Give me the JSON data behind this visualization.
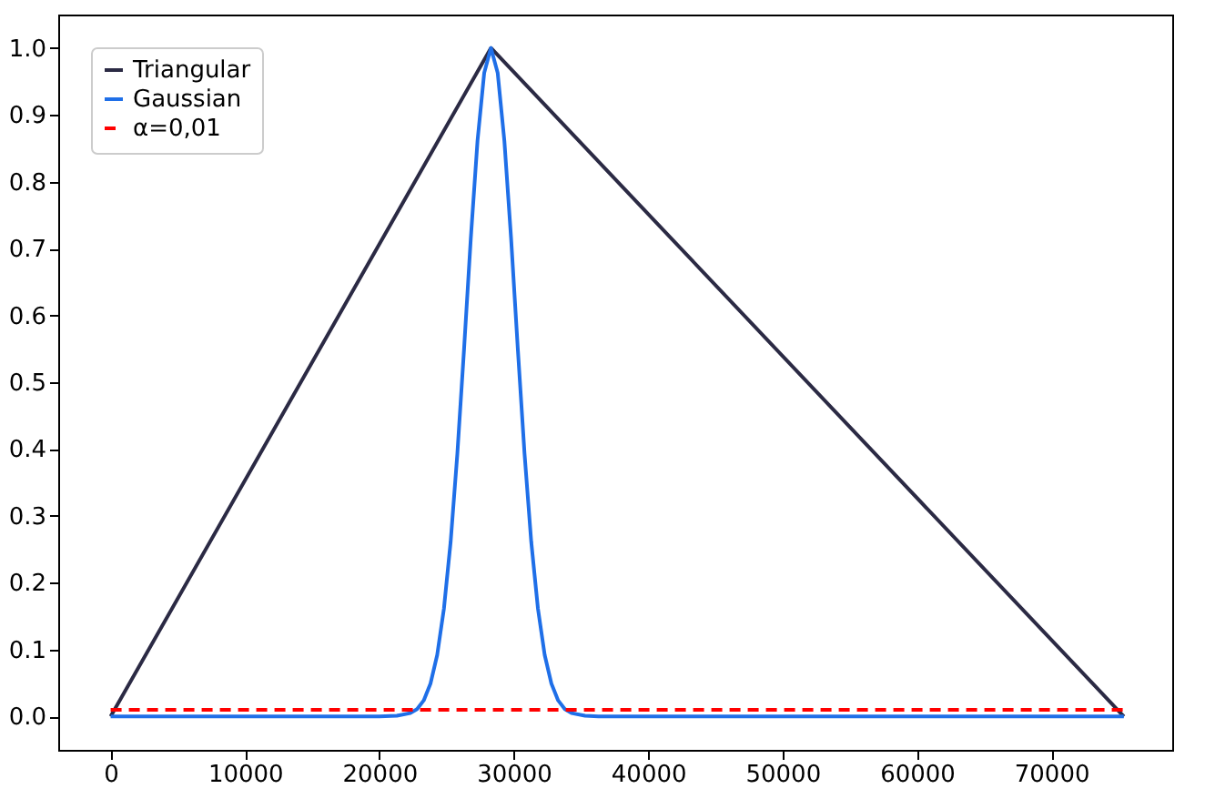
{
  "chart_data": {
    "type": "line",
    "xlim": [
      -3900,
      79000
    ],
    "ylim": [
      -0.05,
      1.05
    ],
    "xticks": [
      0,
      10000,
      20000,
      30000,
      40000,
      50000,
      60000,
      70000
    ],
    "yticks": [
      {
        "value": 0,
        "label": "0.0"
      },
      0.1,
      0.2,
      0.3,
      0.4,
      0.5,
      0.6,
      0.7,
      0.8,
      0.9,
      {
        "value": 1,
        "label": "1.0"
      }
    ],
    "grid": false,
    "legend": "top left",
    "marker": "none",
    "series": [
      {
        "name": "Triangular",
        "color": "#2b2a44",
        "line_style": "solid",
        "x": [
          0,
          28300,
          75400
        ],
        "values": [
          0,
          1,
          0
        ]
      },
      {
        "name": "Gaussian",
        "color": "#1f6fe8",
        "line_style": "solid",
        "x": [
          0,
          20000,
          21300,
          22300,
          22800,
          23300,
          23800,
          24300,
          24800,
          25300,
          25800,
          26300,
          26800,
          27300,
          27800,
          28300,
          28800,
          29300,
          29800,
          30300,
          30800,
          31300,
          31800,
          32300,
          32800,
          33300,
          33800,
          34300,
          35300,
          36300,
          75400
        ],
        "values": [
          0,
          0,
          0.001,
          0.005,
          0.011,
          0.024,
          0.049,
          0.092,
          0.161,
          0.261,
          0.393,
          0.55,
          0.715,
          0.861,
          0.963,
          1,
          0.963,
          0.861,
          0.715,
          0.55,
          0.393,
          0.261,
          0.161,
          0.092,
          0.049,
          0.024,
          0.011,
          0.005,
          0.001,
          0,
          0
        ]
      },
      {
        "name": "α=0,01",
        "color": "#ff0000",
        "line_style": "dashed",
        "x": [
          0,
          75400
        ],
        "values": [
          0.01,
          0.01
        ]
      }
    ]
  }
}
